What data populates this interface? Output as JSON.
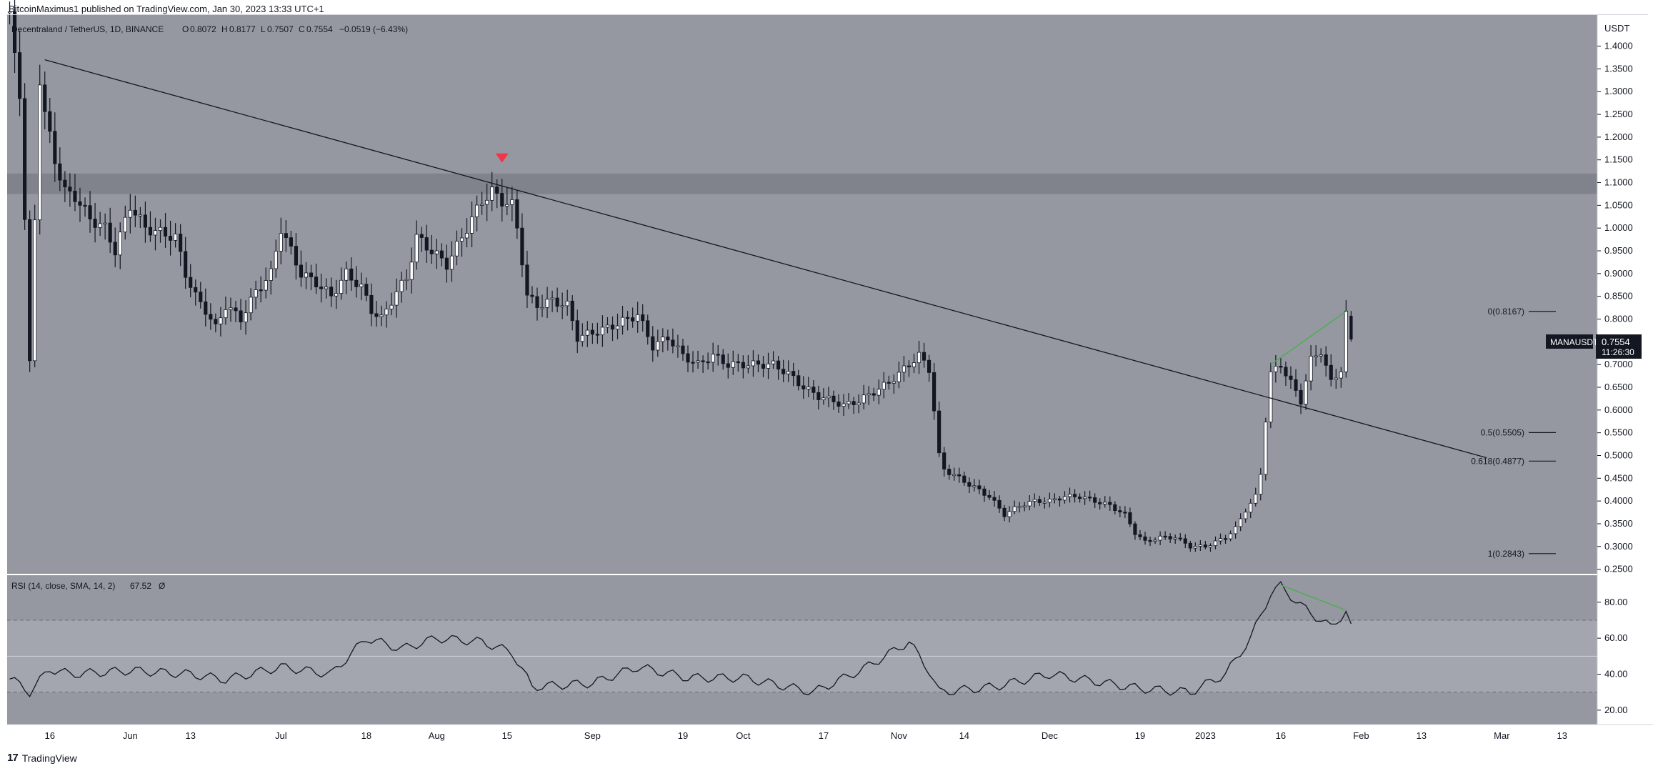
{
  "header": {
    "publisher": "BitcoinMaximus1 published on TradingView.com, Jan 30, 2023 13:33 UTC+1"
  },
  "footer": {
    "brand": "TradingView",
    "logo_glyph": "17"
  },
  "colors": {
    "pane_bg": "#9598a1",
    "up_candle": "#ffffff",
    "down_candle": "#131722",
    "resistance_zone": "#7c7f87",
    "trend_line": "#131722",
    "divergence_line": "#4caf50",
    "arrow_marker": "#f23645",
    "rsi_band": "#a3a6ae"
  },
  "legend": {
    "symbol": "Decentraland / TetherUS, 1D, BINANCE",
    "open_label": "O",
    "open": "0.8072",
    "high_label": "H",
    "high": "0.8177",
    "low_label": "L",
    "low": "0.7507",
    "close_label": "C",
    "close": "0.7554",
    "change": "−0.0519 (−6.43%)"
  },
  "price_tag": {
    "symbol": "MANAUSDT",
    "price": "0.7554",
    "countdown": "11:26:30"
  },
  "rsi_legend": {
    "label": "RSI (14, close, SMA, 14, 2)",
    "value": "67.52",
    "extra": "Ø"
  },
  "chart_data": [
    {
      "type": "candlestick",
      "title": "Decentraland / TetherUS, 1D, BINANCE",
      "y_unit": "USDT",
      "ylim": [
        0.24,
        1.47
      ],
      "y_ticks": [
        "1.4000",
        "1.3500",
        "1.3000",
        "1.2500",
        "1.2000",
        "1.1500",
        "1.1000",
        "1.0500",
        "1.0000",
        "0.9500",
        "0.9000",
        "0.8500",
        "0.8000",
        "0.7500",
        "0.7000",
        "0.6500",
        "0.6000",
        "0.5500",
        "0.5000",
        "0.4500",
        "0.4000",
        "0.3500",
        "0.3000",
        "0.2500"
      ],
      "x_ticks": [
        "16",
        "Jun",
        "13",
        "Jul",
        "18",
        "Aug",
        "15",
        "Sep",
        "19",
        "Oct",
        "17",
        "Nov",
        "14",
        "Dec",
        "19",
        "2023",
        "16",
        "Feb",
        "13",
        "Mar",
        "13"
      ],
      "x_tick_dates": [
        "2022-05-16",
        "2022-06-01",
        "2022-06-13",
        "2022-07-01",
        "2022-07-18",
        "2022-08-01",
        "2022-08-15",
        "2022-09-01",
        "2022-09-19",
        "2022-10-01",
        "2022-10-17",
        "2022-11-01",
        "2022-11-14",
        "2022-12-01",
        "2022-12-19",
        "2023-01-01",
        "2023-01-16",
        "2023-02-01",
        "2023-02-13",
        "2023-03-01",
        "2023-03-13"
      ],
      "x_range": [
        "2022-05-08",
        "2023-03-20"
      ],
      "close_path": [
        [
          "2022-05-08",
          1.46
        ],
        [
          "2022-05-09",
          1.38
        ],
        [
          "2022-05-10",
          1.3
        ],
        [
          "2022-05-11",
          1.02
        ],
        [
          "2022-05-12",
          0.7
        ],
        [
          "2022-05-13",
          1.02
        ],
        [
          "2022-05-14",
          1.33
        ],
        [
          "2022-05-15",
          1.25
        ],
        [
          "2022-05-17",
          1.15
        ],
        [
          "2022-05-19",
          1.08
        ],
        [
          "2022-05-21",
          1.07
        ],
        [
          "2022-05-24",
          1.02
        ],
        [
          "2022-05-27",
          1.0
        ],
        [
          "2022-05-29",
          0.95
        ],
        [
          "2022-06-01",
          1.05
        ],
        [
          "2022-06-04",
          1.0
        ],
        [
          "2022-06-07",
          0.99
        ],
        [
          "2022-06-10",
          0.98
        ],
        [
          "2022-06-12",
          0.9
        ],
        [
          "2022-06-14",
          0.85
        ],
        [
          "2022-06-16",
          0.82
        ],
        [
          "2022-06-18",
          0.78
        ],
        [
          "2022-06-20",
          0.83
        ],
        [
          "2022-06-23",
          0.8
        ],
        [
          "2022-06-26",
          0.86
        ],
        [
          "2022-06-29",
          0.9
        ],
        [
          "2022-07-01",
          1.0
        ],
        [
          "2022-07-03",
          0.95
        ],
        [
          "2022-07-05",
          0.9
        ],
        [
          "2022-07-08",
          0.88
        ],
        [
          "2022-07-11",
          0.85
        ],
        [
          "2022-07-14",
          0.9
        ],
        [
          "2022-07-17",
          0.87
        ],
        [
          "2022-07-19",
          0.82
        ],
        [
          "2022-07-21",
          0.8
        ],
        [
          "2022-07-24",
          0.86
        ],
        [
          "2022-07-26",
          0.89
        ],
        [
          "2022-07-28",
          0.98
        ],
        [
          "2022-07-31",
          0.95
        ],
        [
          "2022-08-03",
          0.92
        ],
        [
          "2022-08-06",
          0.98
        ],
        [
          "2022-08-08",
          1.02
        ],
        [
          "2022-08-10",
          1.06
        ],
        [
          "2022-08-12",
          1.08
        ],
        [
          "2022-08-14",
          1.06
        ],
        [
          "2022-08-16",
          1.05
        ],
        [
          "2022-08-17",
          1.0
        ],
        [
          "2022-08-18",
          0.93
        ],
        [
          "2022-08-19",
          0.85
        ],
        [
          "2022-08-21",
          0.83
        ],
        [
          "2022-08-24",
          0.84
        ],
        [
          "2022-08-27",
          0.83
        ],
        [
          "2022-08-29",
          0.76
        ],
        [
          "2022-09-01",
          0.77
        ],
        [
          "2022-09-04",
          0.78
        ],
        [
          "2022-09-06",
          0.79
        ],
        [
          "2022-09-08",
          0.8
        ],
        [
          "2022-09-10",
          0.81
        ],
        [
          "2022-09-13",
          0.74
        ],
        [
          "2022-09-16",
          0.76
        ],
        [
          "2022-09-19",
          0.72
        ],
        [
          "2022-09-22",
          0.7
        ],
        [
          "2022-09-25",
          0.72
        ],
        [
          "2022-09-28",
          0.7
        ],
        [
          "2022-10-01",
          0.7
        ],
        [
          "2022-10-04",
          0.7
        ],
        [
          "2022-10-07",
          0.7
        ],
        [
          "2022-10-10",
          0.68
        ],
        [
          "2022-10-13",
          0.65
        ],
        [
          "2022-10-16",
          0.63
        ],
        [
          "2022-10-19",
          0.62
        ],
        [
          "2022-10-21",
          0.61
        ],
        [
          "2022-10-24",
          0.62
        ],
        [
          "2022-10-27",
          0.64
        ],
        [
          "2022-10-30",
          0.66
        ],
        [
          "2022-11-01",
          0.68
        ],
        [
          "2022-11-03",
          0.7
        ],
        [
          "2022-11-05",
          0.72
        ],
        [
          "2022-11-07",
          0.69
        ],
        [
          "2022-11-08",
          0.6
        ],
        [
          "2022-11-09",
          0.5
        ],
        [
          "2022-11-10",
          0.47
        ],
        [
          "2022-11-13",
          0.45
        ],
        [
          "2022-11-16",
          0.43
        ],
        [
          "2022-11-19",
          0.41
        ],
        [
          "2022-11-22",
          0.37
        ],
        [
          "2022-11-25",
          0.39
        ],
        [
          "2022-11-28",
          0.4
        ],
        [
          "2022-12-01",
          0.4
        ],
        [
          "2022-12-04",
          0.41
        ],
        [
          "2022-12-07",
          0.41
        ],
        [
          "2022-12-10",
          0.4
        ],
        [
          "2022-12-13",
          0.39
        ],
        [
          "2022-12-16",
          0.37
        ],
        [
          "2022-12-18",
          0.33
        ],
        [
          "2022-12-20",
          0.31
        ],
        [
          "2022-12-23",
          0.32
        ],
        [
          "2022-12-26",
          0.32
        ],
        [
          "2022-12-29",
          0.3
        ],
        [
          "2023-01-01",
          0.3
        ],
        [
          "2023-01-03",
          0.31
        ],
        [
          "2023-01-05",
          0.32
        ],
        [
          "2023-01-07",
          0.34
        ],
        [
          "2023-01-09",
          0.38
        ],
        [
          "2023-01-11",
          0.41
        ],
        [
          "2023-01-12",
          0.46
        ],
        [
          "2023-01-13",
          0.58
        ],
        [
          "2023-01-14",
          0.68
        ],
        [
          "2023-01-16",
          0.7
        ],
        [
          "2023-01-18",
          0.66
        ],
        [
          "2023-01-20",
          0.62
        ],
        [
          "2023-01-22",
          0.71
        ],
        [
          "2023-01-24",
          0.73
        ],
        [
          "2023-01-26",
          0.66
        ],
        [
          "2023-01-28",
          0.69
        ],
        [
          "2023-01-29",
          0.81
        ],
        [
          "2023-01-30",
          0.7554
        ]
      ],
      "latest_candle": {
        "date": "2023-01-30",
        "open": 0.8072,
        "high": 0.8177,
        "low": 0.7507,
        "close": 0.7554
      },
      "resistance_zone": [
        1.075,
        1.12
      ],
      "descending_trendline": [
        [
          "2022-05-15",
          1.37
        ],
        [
          "2023-02-26",
          0.495
        ]
      ],
      "price_divergence_line": [
        [
          "2023-01-14",
          0.7
        ],
        [
          "2023-01-29",
          0.817
        ]
      ],
      "signal_marker": {
        "date": "2022-08-14",
        "price": 1.153
      },
      "fib_levels": [
        {
          "label": "0(0.8167)",
          "value": 0.8167
        },
        {
          "label": "0.5(0.5505)",
          "value": 0.5505
        },
        {
          "label": "0.618(0.4877)",
          "value": 0.4877
        },
        {
          "label": "1(0.2843)",
          "value": 0.2843
        }
      ]
    },
    {
      "type": "line",
      "title": "RSI (14, close, SMA, 14, 2)",
      "ylim": [
        12,
        95
      ],
      "y_ticks": [
        "80.00",
        "60.00",
        "40.00",
        "20.00"
      ],
      "bands": [
        30,
        50,
        70
      ],
      "x": [
        "2022-05-08",
        "2022-05-12",
        "2022-05-16",
        "2022-05-20",
        "2022-06-01",
        "2022-06-13",
        "2022-06-20",
        "2022-07-01",
        "2022-07-11",
        "2022-07-18",
        "2022-07-25",
        "2022-08-01",
        "2022-08-10",
        "2022-08-16",
        "2022-08-20",
        "2022-09-01",
        "2022-09-10",
        "2022-09-20",
        "2022-10-01",
        "2022-10-15",
        "2022-10-25",
        "2022-11-03",
        "2022-11-07",
        "2022-11-09",
        "2022-11-20",
        "2022-12-01",
        "2022-12-10",
        "2022-12-19",
        "2022-12-29",
        "2023-01-05",
        "2023-01-10",
        "2023-01-14",
        "2023-01-16",
        "2023-01-20",
        "2023-01-26",
        "2023-01-29",
        "2023-01-30"
      ],
      "values": [
        38,
        30,
        43,
        40,
        42,
        40,
        37,
        44,
        40,
        60,
        54,
        60,
        58,
        52,
        33,
        35,
        44,
        38,
        38,
        30,
        43,
        58,
        42,
        30,
        33,
        40,
        36,
        32,
        30,
        40,
        60,
        85,
        89,
        78,
        66,
        75,
        68
      ],
      "divergence_line": [
        [
          "2023-01-16",
          89.5
        ],
        [
          "2023-01-29",
          75.5
        ]
      ],
      "latest_value": 67.52
    }
  ]
}
